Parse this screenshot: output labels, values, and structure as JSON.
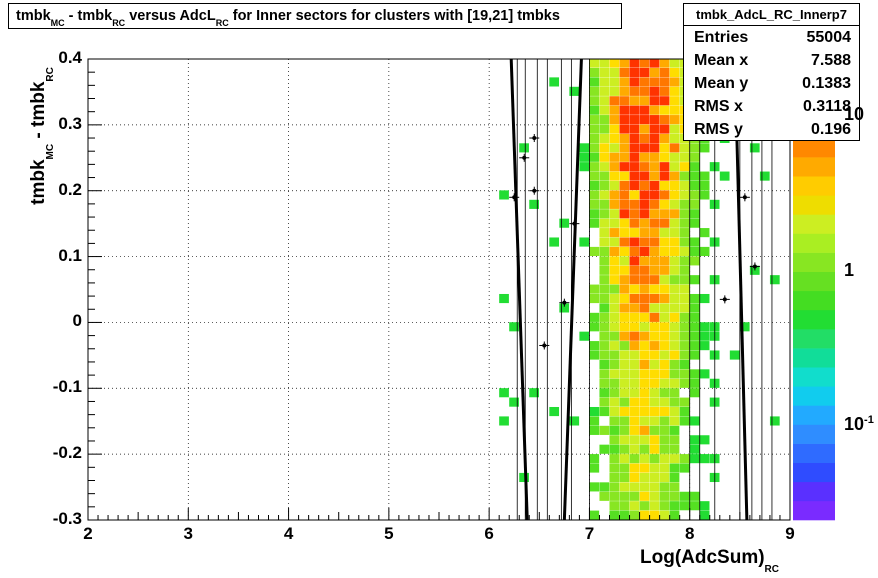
{
  "title": {
    "p1": "tmbk",
    "s1": "MC",
    "p2": " - tmbk",
    "s2": "RC",
    "p3": " versus AdcL",
    "s3": "RC",
    "p4": " for Inner sectors for clusters with [19,21] tmbks"
  },
  "stats": {
    "name": "tmbk_AdcL_RC_Innerp7",
    "rows": [
      {
        "label": "Entries",
        "value": "55004"
      },
      {
        "label": "Mean x",
        "value": "7.588"
      },
      {
        "label": "Mean y",
        "value": "0.1383"
      },
      {
        "label": "RMS x",
        "value": "0.3118"
      },
      {
        "label": "RMS y",
        "value": "0.196"
      }
    ]
  },
  "axes": {
    "xlabel_main": "Log(AdcSum)",
    "xlabel_sub": "RC",
    "ylabel_main": "tmbk",
    "ylabel_sub1": "MC",
    "ylabel_mid": " - tmbk",
    "ylabel_sub2": "RC"
  },
  "chart_data": {
    "type": "heatmap",
    "xlim": [
      2,
      9
    ],
    "ylim": [
      -0.3,
      0.4
    ],
    "x_ticks": [
      "2",
      "3",
      "4",
      "5",
      "6",
      "7",
      "8",
      "9"
    ],
    "y_ticks": [
      "-0.3",
      "-0.2",
      "-0.1",
      "0",
      "0.1",
      "0.2",
      "0.3",
      "0.4"
    ],
    "z_scale": "log",
    "z_ticks": [
      {
        "label": "10",
        "exp": "-1"
      },
      {
        "label": "1",
        "exp": ""
      },
      {
        "label": "10",
        "exp": ""
      }
    ],
    "colors": {
      "low": "#7a2bff",
      "mid_low": "#2f6bff",
      "mid": "#22dd33",
      "mid_high": "#ccee22",
      "high": "#ff9900",
      "max": "#ff1a00"
    },
    "density_profile": {
      "x_center": 7.55,
      "x_sigma": 0.32,
      "y_peak": 0.38,
      "y_falloff": 0.45,
      "x_range": [
        6.9,
        8.4
      ]
    },
    "overlays": {
      "profile_points": [
        {
          "x": 6.35,
          "y": 0.25,
          "ex": 0.02,
          "ey": 0.01
        },
        {
          "x": 6.45,
          "y": 0.28,
          "ex": 0.02,
          "ey": 0.01
        },
        {
          "x": 6.25,
          "y": 0.19,
          "ex": 0.02,
          "ey": 0.01
        },
        {
          "x": 6.45,
          "y": 0.2,
          "ex": 0.02,
          "ey": 0.01
        },
        {
          "x": 6.85,
          "y": 0.15,
          "ex": 0.02,
          "ey": 0.01
        },
        {
          "x": 6.75,
          "y": 0.03,
          "ex": 0.02,
          "ey": 0.01
        },
        {
          "x": 6.55,
          "y": -0.035,
          "ex": 0.02,
          "ey": 0.01
        },
        {
          "x": 8.55,
          "y": 0.19,
          "ex": 0.02,
          "ey": 0.01
        },
        {
          "x": 8.65,
          "y": 0.085,
          "ex": 0.02,
          "ey": 0.01
        },
        {
          "x": 8.35,
          "y": 0.035,
          "ex": 0.02,
          "ey": 0.01
        },
        {
          "x": 8.75,
          "y": 0.31,
          "ex": 0.02,
          "ey": 0.01
        }
      ],
      "band_curves": [
        {
          "x_bottom": 6.38,
          "x_top": 6.22
        },
        {
          "x_bottom": 6.75,
          "x_top": 6.92
        },
        {
          "x_bottom": 8.57,
          "x_top": 8.45
        }
      ],
      "vertical_lines": [
        6.28,
        6.36,
        6.48,
        6.58,
        6.72,
        6.82,
        7.0,
        8.0,
        8.1,
        8.25,
        8.5,
        8.62,
        8.72,
        8.82
      ]
    }
  }
}
